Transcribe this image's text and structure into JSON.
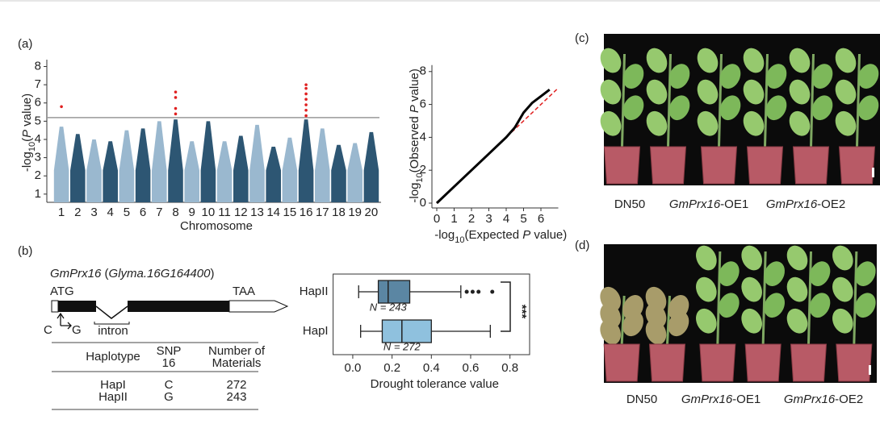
{
  "panel_labels": [
    "(a)",
    "(b)",
    "(c)",
    "(d)"
  ],
  "chart_data": [
    {
      "type": "manhattan",
      "xlabel": "Chromosome",
      "ylabel": [
        "-log",
        "10",
        "(",
        "P",
        " value)"
      ],
      "categories": [
        "1",
        "2",
        "3",
        "4",
        "5",
        "6",
        "7",
        "8",
        "9",
        "10",
        "11",
        "12",
        "13",
        "14",
        "15",
        "16",
        "17",
        "18",
        "19",
        "20"
      ],
      "values": [
        4.7,
        4.3,
        4.0,
        3.9,
        4.5,
        4.6,
        5.0,
        5.1,
        3.9,
        5.0,
        3.9,
        4.2,
        4.8,
        3.6,
        4.1,
        5.1,
        4.6,
        3.7,
        3.8,
        4.4
      ],
      "colors": [
        "#9ab8cf",
        "#2d5673"
      ],
      "significant": {
        "chromosome": [
          1,
          8,
          8,
          8,
          8,
          16,
          16,
          16,
          16,
          16,
          16,
          16
        ],
        "values": [
          5.8,
          6.6,
          6.3,
          5.7,
          5.4,
          7.0,
          6.8,
          6.5,
          6.2,
          5.9,
          5.6,
          5.3
        ],
        "color": "#e02020"
      },
      "threshold": 5.2,
      "ylim": [
        0.55,
        8.2
      ],
      "yticks": [
        1,
        2,
        3,
        4,
        5,
        6,
        7,
        8
      ]
    },
    {
      "type": "qq",
      "xlabel": [
        "-log",
        "10",
        "(Expected ",
        "P",
        " value)"
      ],
      "ylabel": [
        "-log",
        "10",
        "(Observed ",
        "P",
        " value)"
      ],
      "x": [
        0,
        1,
        2,
        3,
        4,
        4.5,
        5,
        5.5,
        6,
        6.5
      ],
      "y": [
        0,
        1,
        2,
        3,
        4,
        4.6,
        5.5,
        6.1,
        6.5,
        6.9
      ],
      "color": "#000000",
      "diagonal_color": "#e02020",
      "xlim": [
        0,
        7
      ],
      "ylim": [
        0,
        8.2
      ],
      "xticks": [
        0,
        1,
        2,
        3,
        4,
        5,
        6
      ],
      "yticks": [
        0,
        2,
        4,
        6,
        8
      ]
    },
    {
      "type": "box",
      "xlabel": "Drought tolerance value",
      "categories": [
        "HapII",
        "HapI"
      ],
      "min": [
        0.03,
        0.04
      ],
      "q1": [
        0.13,
        0.15
      ],
      "median": [
        0.18,
        0.25
      ],
      "q3": [
        0.29,
        0.4
      ],
      "max": [
        0.55,
        0.7
      ],
      "outliers": [
        [
          0.58,
          0.61,
          0.64,
          0.71
        ],
        []
      ],
      "n_labels": [
        "N = 243",
        "N = 272"
      ],
      "colors": [
        "#5b86a3",
        "#8fc1de"
      ],
      "significance": "***",
      "xlim": [
        -0.1,
        0.9
      ],
      "xticks": [
        {
          "value": 0,
          "label": "0.0"
        },
        0.2,
        0.4,
        0.6,
        0.8
      ]
    }
  ],
  "gene": {
    "title": [
      "GmPrx16",
      " (",
      "Glyma.16G164400",
      ")"
    ],
    "start": "ATG",
    "stop": "TAA",
    "intron": "intron",
    "snp_from": "C",
    "snp_to": "G"
  },
  "table": {
    "headers": [
      [
        "Haplotype"
      ],
      [
        "SNP",
        "16"
      ],
      [
        "Number of",
        "Materials"
      ]
    ],
    "rows": [
      [
        "HapI",
        "C",
        "272"
      ],
      [
        "HapII",
        "G",
        "243"
      ]
    ]
  },
  "photos": [
    {
      "captions": [
        [
          "DN50"
        ],
        [
          "GmPrx16",
          "-OE1"
        ],
        [
          "GmPrx16",
          "-OE2"
        ]
      ]
    },
    {
      "captions": [
        [
          "DN50"
        ],
        [
          "GmPrx16",
          "-OE1"
        ],
        [
          "GmPrx16",
          "-OE2"
        ]
      ]
    }
  ]
}
